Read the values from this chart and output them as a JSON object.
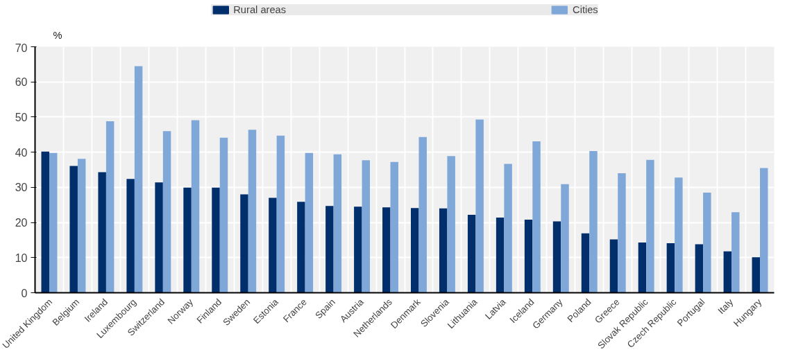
{
  "chart_data": {
    "type": "bar",
    "ylabel": "%",
    "categories": [
      "United Kingdom",
      "Belgium",
      "Ireland",
      "Luxembourg",
      "Switzerland",
      "Norway",
      "Finland",
      "Sweden",
      "Estonia",
      "France",
      "Spain",
      "Austria",
      "Netherlands",
      "Denmark",
      "Slovenia",
      "Lithuania",
      "Latvia",
      "Iceland",
      "Germany",
      "Poland",
      "Greece",
      "Slovak Republic",
      "Czech Republic",
      "Portugal",
      "Italy",
      "Hungary"
    ],
    "series": [
      {
        "name": "Rural areas",
        "color": "#002f6c",
        "values": [
          40.2,
          36.1,
          34.3,
          32.4,
          31.4,
          29.9,
          29.9,
          28.0,
          27.0,
          25.9,
          24.7,
          24.5,
          24.3,
          24.1,
          24.0,
          22.2,
          21.4,
          20.8,
          20.3,
          16.9,
          15.2,
          14.3,
          14.1,
          13.8,
          11.8,
          10.1
        ]
      },
      {
        "name": "Cities",
        "color": "#7fa8d9",
        "values": [
          39.8,
          38.1,
          48.8,
          64.5,
          46.0,
          49.1,
          44.1,
          46.4,
          44.7,
          39.8,
          39.4,
          37.7,
          37.2,
          44.3,
          38.9,
          49.3,
          36.7,
          43.1,
          30.9,
          40.3,
          34.0,
          37.8,
          32.8,
          28.5,
          22.9,
          35.5
        ]
      }
    ],
    "ylim": [
      0,
      70
    ],
    "yticks": [
      0,
      10,
      20,
      30,
      40,
      50,
      60,
      70
    ],
    "grid": true,
    "legend": "top"
  }
}
